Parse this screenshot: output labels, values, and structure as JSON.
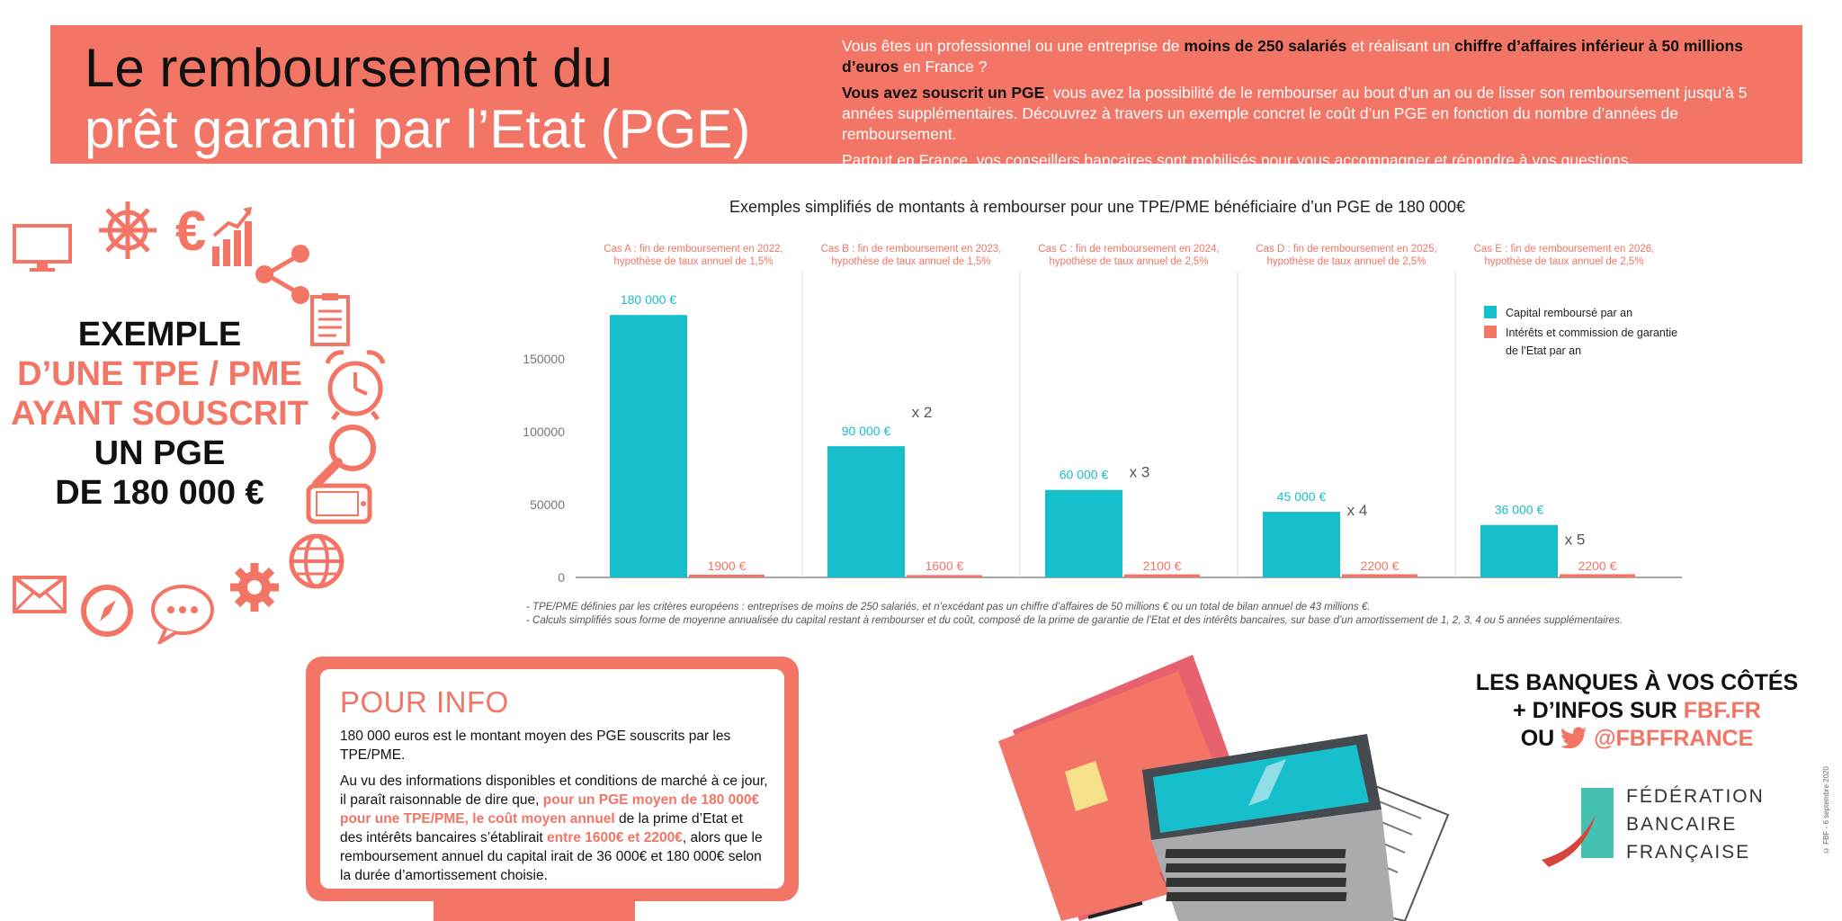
{
  "header": {
    "title_line1": "Le remboursement du",
    "title_line2": "prêt garanti par l’Etat (PGE)",
    "intro": {
      "p1_a": "Vous êtes un professionnel ou une entreprise de ",
      "p1_b": "moins de 250 salariés",
      "p1_c": " et réalisant un ",
      "p1_d": "chiffre d’affaires inférieur à 50 millions d’euros",
      "p1_e": " en France ?",
      "p2_a": "Vous avez souscrit un PGE",
      "p2_b": ", vous avez la possibilité de le rembourser au bout d’un an ou de lisser son remboursement jusqu’à 5 années supplémentaires. Découvrez à travers un exemple concret le coût d’un PGE en fonction du nombre d’années de remboursement.",
      "p3": "Partout en France, vos conseillers bancaires sont mobilisés pour vous accompagner et répondre à vos questions."
    }
  },
  "example": {
    "line1": "EXEMPLE",
    "line2": "D’UNE TPE / PME",
    "line3": "AYANT SOUSCRIT",
    "line4": "UN PGE",
    "line5": "DE 180 000 €"
  },
  "icons": [
    "monitor-icon",
    "ship-wheel-icon",
    "euro-icon",
    "growth-chart-icon",
    "share-icon",
    "clipboard-icon",
    "alarm-clock-icon",
    "magnifier-icon",
    "smartphone-icon",
    "globe-icon",
    "gear-icon",
    "chat-bubble-icon",
    "compass-icon",
    "envelope-icon"
  ],
  "colors": {
    "accent": "#f27566",
    "teal": "#17becb",
    "text": "#1a1a1a"
  },
  "chart_data": {
    "type": "bar",
    "title": "Exemples simplifiés de montants à rembourser pour une TPE/PME bénéficiaire d’un PGE de 180 000€",
    "categories": [
      "Cas A : fin de remboursement en 2022, hypothèse de taux annuel de 1,5%",
      "Cas B : fin de remboursement en 2023, hypothèse de taux annuel de 1,5%",
      "Cas C : fin de remboursement en 2024, hypothèse de taux annuel de 2,5%",
      "Cas D : fin de remboursement en 2025, hypothèse de taux annuel de 2,5%",
      "Cas E : fin de remboursement en 2026, hypothèse de taux annuel de 2,5%"
    ],
    "category_lines": [
      [
        "Cas A : fin de remboursement en 2022,",
        "hypothèse de taux annuel de 1,5%"
      ],
      [
        "Cas B : fin de remboursement en 2023,",
        "hypothèse de taux annuel de 1,5%"
      ],
      [
        "Cas C : fin de remboursement en 2024,",
        "hypothèse de taux annuel de 2,5%"
      ],
      [
        "Cas D : fin de remboursement en 2025,",
        "hypothèse de taux annuel de 2,5%"
      ],
      [
        "Cas E : fin de remboursement en 2026,",
        "hypothèse de taux annuel de 2,5%"
      ]
    ],
    "series": [
      {
        "name": "Capital remboursé par an",
        "color": "#17becb",
        "values": [
          180000,
          90000,
          60000,
          45000,
          36000
        ],
        "labels": [
          "180 000 €",
          "90 000 €",
          "60 000 €",
          "45 000 €",
          "36 000 €"
        ]
      },
      {
        "name": "Intérêts et commission de garantie de l’Etat par an",
        "color": "#f27566",
        "values": [
          1900,
          1600,
          2100,
          2200,
          2200
        ],
        "labels": [
          "1900 €",
          "1600 €",
          "2100 €",
          "2200 €",
          "2200 €"
        ]
      }
    ],
    "legend_lines": [
      [
        "Capital remboursé par an"
      ],
      [
        "Intérêts et commission de garantie",
        "de l’Etat par an"
      ]
    ],
    "multipliers": [
      "",
      "x 2",
      "x 3",
      "x 4",
      "x 5"
    ],
    "yticks": [
      0,
      50000,
      100000,
      150000
    ],
    "ylim": [
      0,
      190000
    ],
    "xlabel": "",
    "ylabel": "",
    "legend_position": "top-right",
    "grid": false
  },
  "footnotes": {
    "line1": "- TPE/PME définies par les critères européens : entreprises de moins de 250 salariés, et n’excédant pas un chiffre d’affaires de 50 millions € ou un total de bilan annuel de 43 millions €.",
    "line2": "- Calculs simplifiés sous forme de moyenne annualisée du capital restant à rembourser et du coût, composé de la prime de garantie de l’Etat et des intérêts bancaires, sur base d’un amortissement de 1, 2, 3, 4 ou 5 années supplémentaires."
  },
  "info": {
    "title": "POUR INFO",
    "p1": "180 000 euros est le montant moyen des PGE souscrits par les TPE/PME.",
    "p2_a": "Au vu des informations disponibles et conditions de marché à ce jour, il paraît raisonnable de dire que, ",
    "p2_b": "pour un PGE moyen de 180 000€ pour une TPE/PME, le coût moyen annuel",
    "p2_c": " de la prime d’Etat et des intérêts bancaires s’établirait ",
    "p2_d": "entre 1600€ et 2200€",
    "p2_e": ", alors que le remboursement annuel du capital irait de 36 000€ et 180 000€ selon la durée d’amortissement choisie."
  },
  "banks": {
    "line1": "LES BANQUES À VOS CÔTÉS",
    "line2_a": "+ D’INFOS SUR ",
    "line2_b": "FBF.FR",
    "line3_a": "OU ",
    "line3_b": "@FBFFRANCE"
  },
  "fbf": {
    "line1": "FÉDÉRATION",
    "line2": "BANCAIRE",
    "line3": "FRANÇAISE"
  },
  "credit": "© FBF - 6 septembre 2020"
}
